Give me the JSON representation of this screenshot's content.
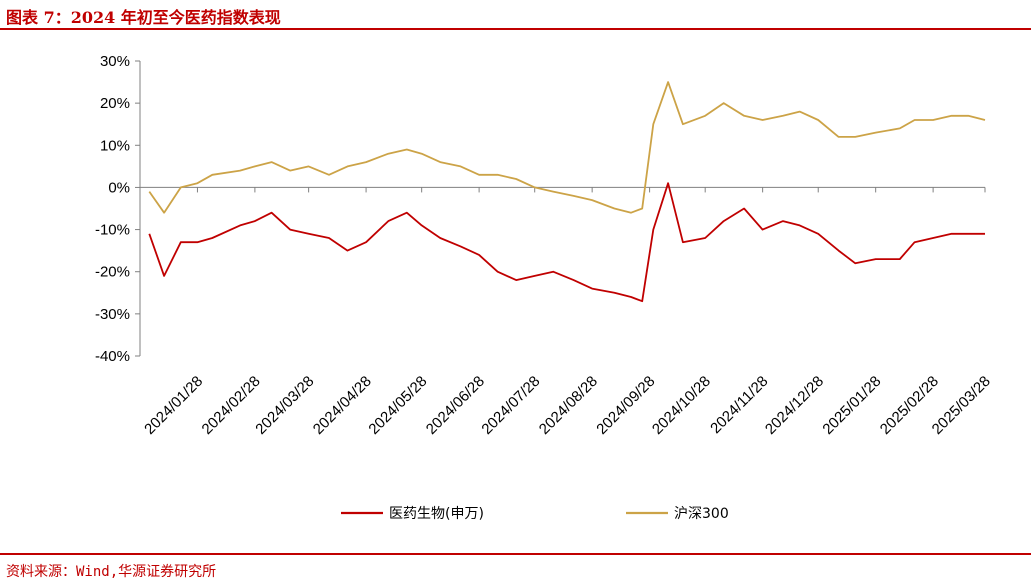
{
  "header": {
    "title": "图表 7：2024 年初至今医药指数表现"
  },
  "footer": {
    "source": "资料来源：Wind,华源证券研究所"
  },
  "chart_data": {
    "type": "line",
    "title": "",
    "ylim": [
      -40,
      30
    ],
    "ytick_labels": [
      "30%",
      "20%",
      "10%",
      "0%",
      "-10%",
      "-20%",
      "-30%",
      "-40%"
    ],
    "ytick_values": [
      30,
      20,
      10,
      0,
      -10,
      -20,
      -30,
      -40
    ],
    "x_tick_labels": [
      "2024/01/28",
      "2024/02/28",
      "2024/03/28",
      "2024/04/28",
      "2024/05/28",
      "2024/06/28",
      "2024/07/28",
      "2024/08/28",
      "2024/09/28",
      "2024/10/28",
      "2024/11/28",
      "2024/12/28",
      "2025/01/28",
      "2025/02/28",
      "2025/03/28"
    ],
    "x": [
      "2024/01/02",
      "2024/01/10",
      "2024/01/19",
      "2024/01/28",
      "2024/02/05",
      "2024/02/20",
      "2024/02/28",
      "2024/03/08",
      "2024/03/18",
      "2024/03/28",
      "2024/04/08",
      "2024/04/18",
      "2024/04/28",
      "2024/05/10",
      "2024/05/20",
      "2024/05/28",
      "2024/06/07",
      "2024/06/18",
      "2024/06/28",
      "2024/07/08",
      "2024/07/18",
      "2024/07/28",
      "2024/08/07",
      "2024/08/18",
      "2024/08/28",
      "2024/09/09",
      "2024/09/18",
      "2024/09/24",
      "2024/09/30",
      "2024/10/08",
      "2024/10/16",
      "2024/10/28",
      "2024/11/07",
      "2024/11/18",
      "2024/11/28",
      "2024/12/09",
      "2024/12/18",
      "2024/12/28",
      "2025/01/08",
      "2025/01/17",
      "2025/01/28",
      "2025/02/10",
      "2025/02/18",
      "2025/02/28",
      "2025/03/10",
      "2025/03/19",
      "2025/03/28"
    ],
    "series": [
      {
        "name": "医药生物(申万)",
        "color": "#c00000",
        "values": [
          -11,
          -21,
          -13,
          -13,
          -12,
          -9,
          -8,
          -6,
          -10,
          -11,
          -12,
          -15,
          -13,
          -8,
          -6,
          -9,
          -12,
          -14,
          -16,
          -20,
          -22,
          -21,
          -20,
          -22,
          -24,
          -25,
          -26,
          -27,
          -10,
          1,
          -13,
          -12,
          -8,
          -5,
          -10,
          -8,
          -9,
          -11,
          -15,
          -18,
          -17,
          -17,
          -13,
          -12,
          -11,
          -11,
          -11
        ]
      },
      {
        "name": "沪深300",
        "color": "#cca347",
        "values": [
          -1,
          -6,
          0,
          1,
          3,
          4,
          5,
          6,
          4,
          5,
          3,
          5,
          6,
          8,
          9,
          8,
          6,
          5,
          3,
          3,
          2,
          0,
          -1,
          -2,
          -3,
          -5,
          -6,
          -5,
          15,
          25,
          15,
          17,
          20,
          17,
          16,
          17,
          18,
          16,
          12,
          12,
          13,
          14,
          16,
          16,
          17,
          17,
          16
        ]
      }
    ]
  }
}
